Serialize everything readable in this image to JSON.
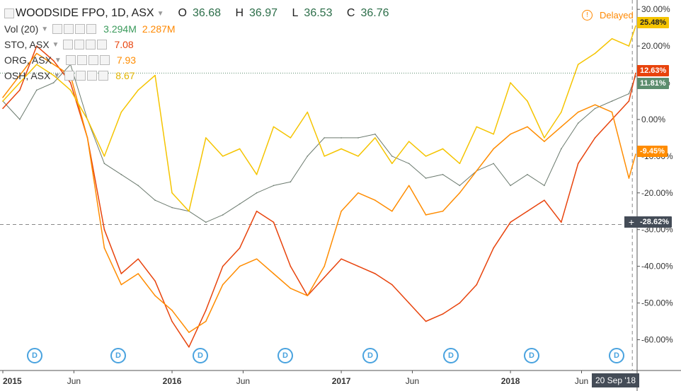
{
  "header": {
    "symbol": "WOODSIDE FPO, 1D, ASX",
    "open_label": "O",
    "open": "36.68",
    "high_label": "H",
    "high": "36.97",
    "low_label": "L",
    "low": "36.53",
    "close_label": "C",
    "close": "36.76",
    "delayed": "Delayed"
  },
  "legend": {
    "vol": {
      "label": "Vol (20)",
      "v1": "3.294M",
      "v2": "2.287M",
      "c1": "#3a9a5b",
      "c2": "#ff8800"
    },
    "sto": {
      "label": "STO, ASX",
      "value": "7.08",
      "color": "#e8430c"
    },
    "org": {
      "label": "ORG, ASX",
      "value": "7.93",
      "color": "#ff8c00"
    },
    "osh": {
      "label": "OSH, ASX",
      "value": "8.67",
      "color": "#f5c400"
    }
  },
  "tags": {
    "osh": {
      "text": "25.48%",
      "color": "#f5c400"
    },
    "sto": {
      "text": "12.63%",
      "color": "#e8430c"
    },
    "wpl": {
      "text": "11.81%",
      "color": "#5c8d6e"
    },
    "org": {
      "text": "-9.45%",
      "color": "#ff8c00"
    },
    "cross": {
      "text": "-28.62%",
      "color": "#444c57"
    }
  },
  "crosshair_date": "20 Sep '18",
  "dividend_marker": "D",
  "chart_data": {
    "type": "line",
    "yunit": "%",
    "ylim": [
      -68,
      31
    ],
    "yticks": [
      30,
      20,
      10,
      0,
      -10,
      -20,
      -30,
      -40,
      -50,
      -60
    ],
    "ytick_labels": [
      "30.00%",
      "20.00%",
      "10.00%",
      "0.00%",
      "-10.00%",
      "-20.00%",
      "-30.00%",
      "-40.00%",
      "-50.00%",
      "-60.00%"
    ],
    "xlim": [
      2015.0,
      2018.74
    ],
    "xticks": [
      2015.0,
      2015.42,
      2016.0,
      2016.42,
      2017.0,
      2017.42,
      2018.0,
      2018.42,
      2018.72
    ],
    "xtick_labels": [
      "2015",
      "Jun",
      "2016",
      "Jun",
      "2017",
      "Jun",
      "2018",
      "Jun",
      "20 Sep '18"
    ],
    "crosshair": {
      "x": 2018.72,
      "y": -28.62
    },
    "dividend_x": [
      2015.15,
      2015.65,
      2016.1,
      2016.6,
      2017.15,
      2017.65,
      2018.1,
      2018.7
    ],
    "series": [
      {
        "name": "WOODSIDE FPO",
        "color": "#6b7a6e",
        "width": 1,
        "x": [
          2015.0,
          2015.1,
          2015.2,
          2015.3,
          2015.4,
          2015.5,
          2015.6,
          2015.7,
          2015.8,
          2015.9,
          2016.0,
          2016.1,
          2016.2,
          2016.3,
          2016.4,
          2016.5,
          2016.6,
          2016.7,
          2016.8,
          2016.9,
          2017.0,
          2017.1,
          2017.2,
          2017.3,
          2017.4,
          2017.5,
          2017.6,
          2017.7,
          2017.8,
          2017.9,
          2018.0,
          2018.1,
          2018.2,
          2018.3,
          2018.4,
          2018.5,
          2018.6,
          2018.7,
          2018.74
        ],
        "y": [
          5,
          0,
          8,
          10,
          15,
          0,
          -12,
          -15,
          -18,
          -22,
          -24,
          -25,
          -28,
          -26,
          -23,
          -20,
          -18,
          -17,
          -10,
          -5,
          -5,
          -5,
          -4,
          -10,
          -12,
          -16,
          -15,
          -18,
          -14,
          -12,
          -18,
          -15,
          -18,
          -8,
          -1,
          3,
          5,
          7,
          11.81
        ]
      },
      {
        "name": "STO",
        "color": "#e8430c",
        "width": 1.5,
        "x": [
          2015.0,
          2015.1,
          2015.2,
          2015.3,
          2015.4,
          2015.5,
          2015.6,
          2015.7,
          2015.8,
          2015.9,
          2016.0,
          2016.1,
          2016.2,
          2016.3,
          2016.4,
          2016.5,
          2016.6,
          2016.7,
          2016.8,
          2016.9,
          2017.0,
          2017.1,
          2017.2,
          2017.3,
          2017.4,
          2017.5,
          2017.6,
          2017.7,
          2017.8,
          2017.9,
          2018.0,
          2018.1,
          2018.2,
          2018.3,
          2018.4,
          2018.5,
          2018.6,
          2018.7,
          2018.74
        ],
        "y": [
          3,
          8,
          20,
          16,
          10,
          -5,
          -30,
          -42,
          -38,
          -44,
          -55,
          -62,
          -52,
          -40,
          -35,
          -25,
          -28,
          -40,
          -48,
          -43,
          -38,
          -40,
          -42,
          -45,
          -50,
          -55,
          -53,
          -50,
          -45,
          -35,
          -28,
          -25,
          -22,
          -28,
          -12,
          -5,
          0,
          5,
          12.63
        ]
      },
      {
        "name": "ORG",
        "color": "#ff8c00",
        "width": 1.5,
        "x": [
          2015.0,
          2015.1,
          2015.2,
          2015.3,
          2015.4,
          2015.5,
          2015.6,
          2015.7,
          2015.8,
          2015.9,
          2016.0,
          2016.1,
          2016.2,
          2016.3,
          2016.4,
          2016.5,
          2016.6,
          2016.7,
          2016.8,
          2016.9,
          2017.0,
          2017.1,
          2017.2,
          2017.3,
          2017.4,
          2017.5,
          2017.6,
          2017.7,
          2017.8,
          2017.9,
          2018.0,
          2018.1,
          2018.2,
          2018.3,
          2018.4,
          2018.5,
          2018.6,
          2018.7,
          2018.74
        ],
        "y": [
          6,
          12,
          18,
          15,
          12,
          -5,
          -35,
          -45,
          -42,
          -48,
          -52,
          -58,
          -55,
          -45,
          -40,
          -38,
          -42,
          -46,
          -48,
          -40,
          -25,
          -20,
          -22,
          -25,
          -18,
          -26,
          -25,
          -20,
          -14,
          -8,
          -4,
          -2,
          -6,
          -2,
          2,
          4,
          2,
          -16,
          -9.45
        ]
      },
      {
        "name": "OSH",
        "color": "#f5c400",
        "width": 1.5,
        "x": [
          2015.0,
          2015.1,
          2015.2,
          2015.3,
          2015.4,
          2015.5,
          2015.6,
          2015.7,
          2015.8,
          2015.9,
          2016.0,
          2016.1,
          2016.2,
          2016.3,
          2016.4,
          2016.5,
          2016.6,
          2016.7,
          2016.8,
          2016.9,
          2017.0,
          2017.1,
          2017.2,
          2017.3,
          2017.4,
          2017.5,
          2017.6,
          2017.7,
          2017.8,
          2017.9,
          2018.0,
          2018.1,
          2018.2,
          2018.3,
          2018.4,
          2018.5,
          2018.6,
          2018.7,
          2018.74
        ],
        "y": [
          5,
          10,
          15,
          12,
          8,
          0,
          -10,
          2,
          8,
          12,
          -20,
          -25,
          -5,
          -10,
          -8,
          -15,
          -2,
          -5,
          2,
          -10,
          -8,
          -10,
          -5,
          -12,
          -6,
          -10,
          -8,
          -12,
          -2,
          -4,
          10,
          5,
          -5,
          2,
          15,
          18,
          22,
          20,
          25.48
        ]
      }
    ]
  }
}
